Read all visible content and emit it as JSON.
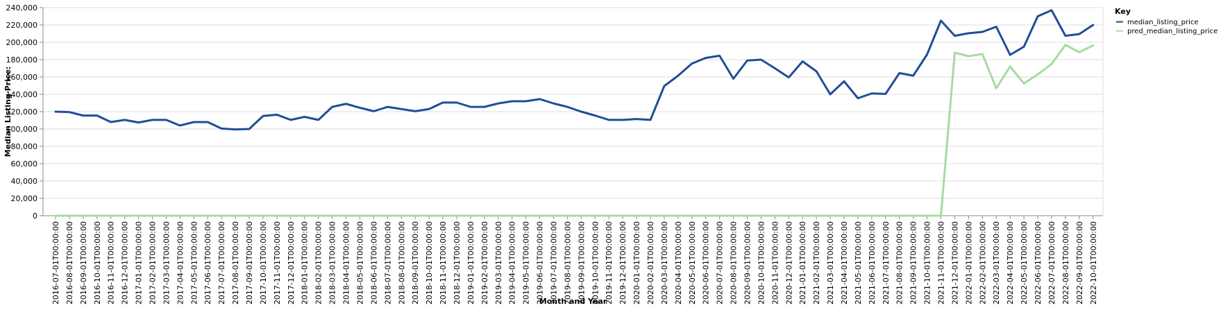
{
  "chart_data": {
    "type": "line",
    "xlabel": "Month and Year",
    "ylabel": "Median Listing Price:",
    "ylim": [
      0,
      240000
    ],
    "yticks": [
      0,
      20000,
      40000,
      60000,
      80000,
      100000,
      120000,
      140000,
      160000,
      180000,
      200000,
      220000,
      240000
    ],
    "ytick_labels": [
      "0",
      "20,000",
      "40,000",
      "60,000",
      "80,000",
      "100,000",
      "120,000",
      "140,000",
      "160,000",
      "180,000",
      "200,000",
      "220,000",
      "240,000"
    ],
    "grid": true,
    "legend": {
      "title": "Key",
      "placement": "top-right"
    },
    "x": [
      "2016-07-01T00:00:00",
      "2016-08-01T00:00:00",
      "2016-09-01T00:00:00",
      "2016-10-01T00:00:00",
      "2016-11-01T00:00:00",
      "2016-12-01T00:00:00",
      "2017-01-01T00:00:00",
      "2017-02-01T00:00:00",
      "2017-03-01T00:00:00",
      "2017-04-01T00:00:00",
      "2017-05-01T00:00:00",
      "2017-06-01T00:00:00",
      "2017-07-01T00:00:00",
      "2017-08-01T00:00:00",
      "2017-09-01T00:00:00",
      "2017-10-01T00:00:00",
      "2017-11-01T00:00:00",
      "2017-12-01T00:00:00",
      "2018-01-01T00:00:00",
      "2018-02-01T00:00:00",
      "2018-03-01T00:00:00",
      "2018-04-01T00:00:00",
      "2018-05-01T00:00:00",
      "2018-06-01T00:00:00",
      "2018-07-01T00:00:00",
      "2018-08-01T00:00:00",
      "2018-09-01T00:00:00",
      "2018-10-01T00:00:00",
      "2018-11-01T00:00:00",
      "2018-12-01T00:00:00",
      "2019-01-01T00:00:00",
      "2019-02-01T00:00:00",
      "2019-03-01T00:00:00",
      "2019-04-01T00:00:00",
      "2019-05-01T00:00:00",
      "2019-06-01T00:00:00",
      "2019-07-01T00:00:00",
      "2019-08-01T00:00:00",
      "2019-09-01T00:00:00",
      "2019-10-01T00:00:00",
      "2019-11-01T00:00:00",
      "2019-12-01T00:00:00",
      "2020-01-01T00:00:00",
      "2020-02-01T00:00:00",
      "2020-03-01T00:00:00",
      "2020-04-01T00:00:00",
      "2020-05-01T00:00:00",
      "2020-06-01T00:00:00",
      "2020-07-01T00:00:00",
      "2020-08-01T00:00:00",
      "2020-09-01T00:00:00",
      "2020-10-01T00:00:00",
      "2020-11-01T00:00:00",
      "2020-12-01T00:00:00",
      "2021-01-01T00:00:00",
      "2021-02-01T00:00:00",
      "2021-03-01T00:00:00",
      "2021-04-01T00:00:00",
      "2021-05-01T00:00:00",
      "2021-06-01T00:00:00",
      "2021-07-01T00:00:00",
      "2021-08-01T00:00:00",
      "2021-09-01T00:00:00",
      "2021-10-01T00:00:00",
      "2021-11-01T00:00:00",
      "2021-12-01T00:00:00",
      "2022-01-01T00:00:00",
      "2022-02-01T00:00:00",
      "2022-03-01T00:00:00",
      "2022-04-01T00:00:00",
      "2022-05-01T00:00:00",
      "2022-06-01T00:00:00",
      "2022-07-01T00:00:00",
      "2022-08-01T00:00:00",
      "2022-09-01T00:00:00",
      "2022-10-01T00:00:00"
    ],
    "series": [
      {
        "name": "median_listing_price",
        "color": "#1f4e96",
        "values": [
          120000,
          119500,
          115500,
          115500,
          108000,
          110500,
          107500,
          110500,
          110500,
          104000,
          108000,
          108000,
          100500,
          99500,
          100000,
          115000,
          116500,
          110500,
          114000,
          110500,
          125500,
          129000,
          124500,
          120500,
          125500,
          123000,
          120500,
          123000,
          130500,
          130500,
          125500,
          125500,
          129500,
          132000,
          132000,
          134500,
          129500,
          125500,
          120000,
          115500,
          110500,
          110500,
          111500,
          110500,
          149500,
          161500,
          175500,
          182000,
          184500,
          158000,
          179000,
          180000,
          170000,
          159500,
          178000,
          166500,
          140000,
          155000,
          135500,
          141000,
          140500,
          164500,
          161500,
          186000,
          225000,
          207500,
          210500,
          212000,
          218000,
          185500,
          195000,
          230000,
          237000,
          207500,
          209500,
          220000
        ]
      },
      {
        "name": "pred_median_listing_price",
        "color": "#a6dba0",
        "values": [
          0,
          0,
          0,
          0,
          0,
          0,
          0,
          0,
          0,
          0,
          0,
          0,
          0,
          0,
          0,
          0,
          0,
          0,
          0,
          0,
          0,
          0,
          0,
          0,
          0,
          0,
          0,
          0,
          0,
          0,
          0,
          0,
          0,
          0,
          0,
          0,
          0,
          0,
          0,
          0,
          0,
          0,
          0,
          0,
          0,
          0,
          0,
          0,
          0,
          0,
          0,
          0,
          0,
          0,
          0,
          0,
          0,
          0,
          0,
          0,
          0,
          0,
          0,
          0,
          0,
          188000,
          184000,
          186500,
          147000,
          172000,
          152500,
          163000,
          175000,
          197000,
          188500,
          196500
        ]
      }
    ]
  }
}
